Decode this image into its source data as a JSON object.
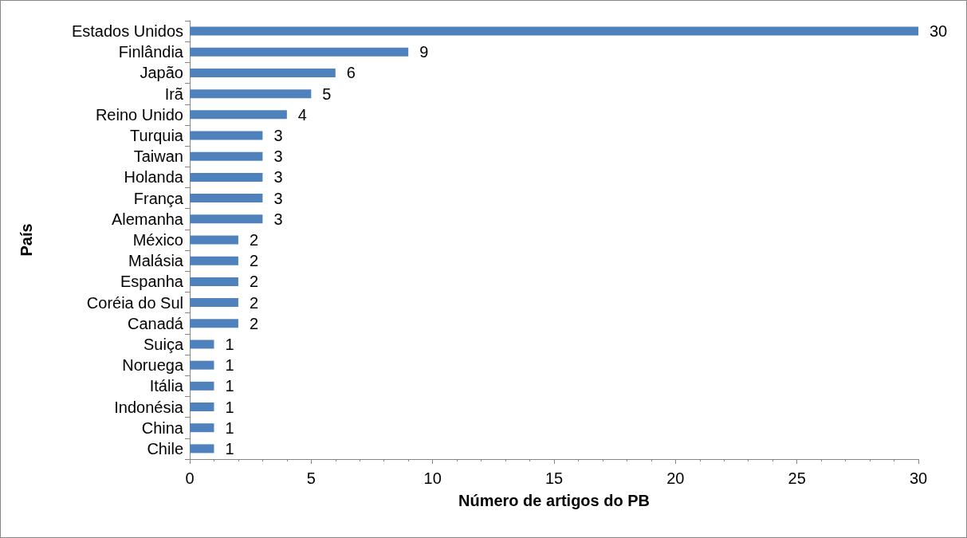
{
  "chart_data": {
    "type": "bar",
    "orientation": "horizontal",
    "xlabel": "Número de artigos do PB",
    "ylabel": "País",
    "categories": [
      "Estados Unidos",
      "Finlândia",
      "Japão",
      "Irã",
      "Reino Unido",
      "Turquia",
      "Taiwan",
      "Holanda",
      "França",
      "Alemanha",
      "México",
      "Malásia",
      "Espanha",
      "Coréia do Sul",
      "Canadá",
      "Suiça",
      "Noruega",
      "Itália",
      "Indonésia",
      "China",
      "Chile"
    ],
    "values": [
      30,
      9,
      6,
      5,
      4,
      3,
      3,
      3,
      3,
      3,
      2,
      2,
      2,
      2,
      2,
      1,
      1,
      1,
      1,
      1,
      1
    ],
    "color": "#4f81bd",
    "xlim": [
      0,
      30
    ],
    "xticks": [
      0,
      5,
      10,
      15,
      20,
      25,
      30
    ],
    "grid": false,
    "data_labels": true
  }
}
